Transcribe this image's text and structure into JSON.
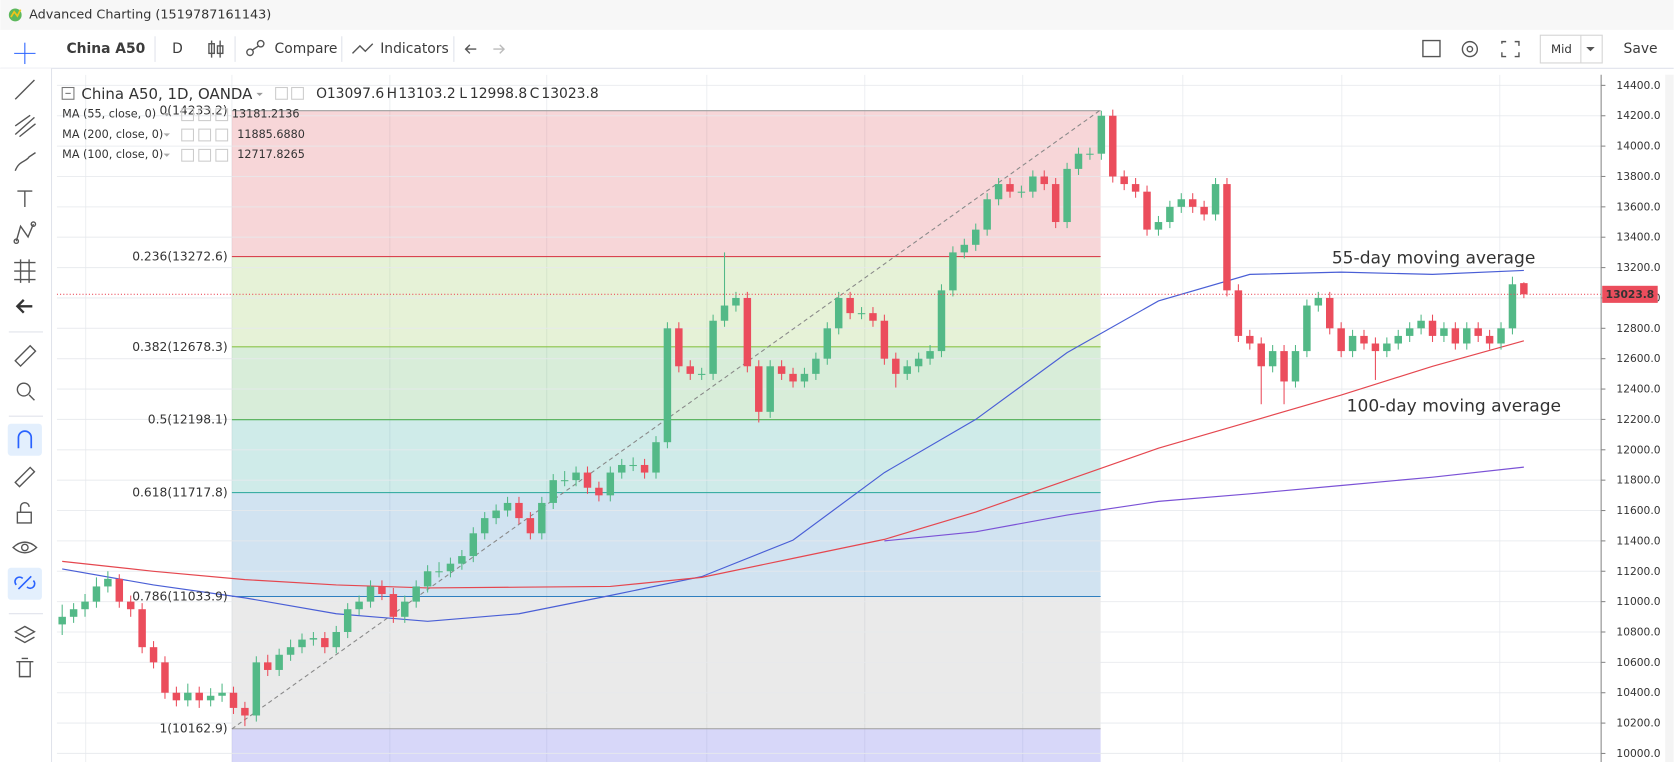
{
  "window": {
    "title": "Advanced Charting (1519787161143)"
  },
  "toolbar": {
    "symbol": "China A50",
    "interval": "D",
    "compare": "Compare",
    "indicators": "Indicators",
    "price_type": "Mid",
    "save": "Save"
  },
  "chart_data": {
    "type": "candlestick",
    "title": "China A50, 1D, OANDA",
    "ohlc_labels": [
      "O",
      "H",
      "L",
      "C"
    ],
    "up_color": "#53b987",
    "down_color": "#eb4d5c",
    "candles": [
      [
        10850,
        10980,
        10780,
        10900
      ],
      [
        10900,
        10990,
        10860,
        10950
      ],
      [
        10950,
        11050,
        10900,
        11000
      ],
      [
        11000,
        11160,
        10960,
        11100
      ],
      [
        11100,
        11200,
        11060,
        11150
      ],
      [
        11150,
        11180,
        10960,
        11000
      ],
      [
        11000,
        11040,
        10900,
        10950
      ],
      [
        10950,
        10990,
        10660,
        10700
      ],
      [
        10700,
        10740,
        10560,
        10600
      ],
      [
        10600,
        10640,
        10360,
        10400
      ],
      [
        10400,
        10440,
        10310,
        10350
      ],
      [
        10350,
        10460,
        10310,
        10400
      ],
      [
        10400,
        10440,
        10300,
        10350
      ],
      [
        10350,
        10430,
        10310,
        10380
      ],
      [
        10380,
        10460,
        10340,
        10400
      ],
      [
        10400,
        10440,
        10260,
        10300
      ],
      [
        10300,
        10340,
        10180,
        10250
      ],
      [
        10250,
        10640,
        10210,
        10600
      ],
      [
        10600,
        10650,
        10510,
        10550
      ],
      [
        10550,
        10690,
        10510,
        10650
      ],
      [
        10650,
        10750,
        10610,
        10700
      ],
      [
        10700,
        10790,
        10660,
        10750
      ],
      [
        10750,
        10800,
        10710,
        10760
      ],
      [
        10760,
        10800,
        10660,
        10700
      ],
      [
        10700,
        10840,
        10660,
        10800
      ],
      [
        10800,
        10990,
        10760,
        10950
      ],
      [
        10950,
        11040,
        10910,
        11000
      ],
      [
        11000,
        11140,
        10960,
        11100
      ],
      [
        11100,
        11140,
        11010,
        11050
      ],
      [
        11050,
        11090,
        10860,
        10900
      ],
      [
        10900,
        11040,
        10860,
        11000
      ],
      [
        11000,
        11140,
        10960,
        11100
      ],
      [
        11100,
        11240,
        11060,
        11200
      ],
      [
        11200,
        11260,
        11160,
        11200
      ],
      [
        11200,
        11290,
        11160,
        11250
      ],
      [
        11250,
        11340,
        11210,
        11300
      ],
      [
        11300,
        11490,
        11260,
        11450
      ],
      [
        11450,
        11590,
        11410,
        11550
      ],
      [
        11550,
        11640,
        11510,
        11600
      ],
      [
        11600,
        11690,
        11560,
        11650
      ],
      [
        11650,
        11690,
        11510,
        11550
      ],
      [
        11550,
        11590,
        11410,
        11450
      ],
      [
        11450,
        11690,
        11410,
        11650
      ],
      [
        11650,
        11840,
        11610,
        11800
      ],
      [
        11800,
        11860,
        11760,
        11800
      ],
      [
        11800,
        11890,
        11760,
        11850
      ],
      [
        11850,
        11890,
        11710,
        11750
      ],
      [
        11750,
        11790,
        11660,
        11700
      ],
      [
        11700,
        11890,
        11660,
        11850
      ],
      [
        11850,
        11940,
        11810,
        11900
      ],
      [
        11900,
        11950,
        11860,
        11900
      ],
      [
        11900,
        11940,
        11810,
        11850
      ],
      [
        11850,
        12090,
        11810,
        12050
      ],
      [
        12050,
        12840,
        12010,
        12800
      ],
      [
        12800,
        12840,
        12510,
        12550
      ],
      [
        12550,
        12590,
        12460,
        12500
      ],
      [
        12500,
        12540,
        12460,
        12500
      ],
      [
        12500,
        12890,
        12460,
        12850
      ],
      [
        12850,
        13300,
        12810,
        12950
      ],
      [
        12950,
        13040,
        12910,
        13000
      ],
      [
        13000,
        13040,
        12510,
        12550
      ],
      [
        12550,
        12590,
        12180,
        12250
      ],
      [
        12250,
        12590,
        12210,
        12550
      ],
      [
        12550,
        12590,
        12460,
        12500
      ],
      [
        12500,
        12540,
        12410,
        12450
      ],
      [
        12450,
        12540,
        12410,
        12500
      ],
      [
        12500,
        12640,
        12460,
        12600
      ],
      [
        12600,
        12840,
        12560,
        12800
      ],
      [
        12800,
        13040,
        12760,
        13000
      ],
      [
        13000,
        13040,
        12860,
        12900
      ],
      [
        12900,
        12940,
        12860,
        12900
      ],
      [
        12900,
        12940,
        12810,
        12850
      ],
      [
        12850,
        12890,
        12560,
        12600
      ],
      [
        12600,
        12640,
        12410,
        12500
      ],
      [
        12500,
        12590,
        12460,
        12550
      ],
      [
        12550,
        12640,
        12510,
        12600
      ],
      [
        12600,
        12690,
        12560,
        12650
      ],
      [
        12650,
        13090,
        12610,
        13050
      ],
      [
        13050,
        13340,
        13010,
        13300
      ],
      [
        13300,
        13390,
        13260,
        13350
      ],
      [
        13350,
        13490,
        13310,
        13450
      ],
      [
        13450,
        13690,
        13410,
        13650
      ],
      [
        13650,
        13790,
        13610,
        13750
      ],
      [
        13750,
        13790,
        13660,
        13700
      ],
      [
        13700,
        13740,
        13660,
        13700
      ],
      [
        13700,
        13840,
        13660,
        13800
      ],
      [
        13800,
        13840,
        13710,
        13750
      ],
      [
        13750,
        13790,
        13460,
        13500
      ],
      [
        13500,
        13890,
        13460,
        13850
      ],
      [
        13850,
        13990,
        13810,
        13950
      ],
      [
        13950,
        13990,
        13910,
        13950
      ],
      [
        13950,
        14233.2,
        13910,
        14200
      ],
      [
        14200,
        14240,
        13760,
        13800
      ],
      [
        13800,
        13840,
        13710,
        13750
      ],
      [
        13750,
        13790,
        13660,
        13700
      ],
      [
        13700,
        13740,
        13410,
        13450
      ],
      [
        13450,
        13540,
        13410,
        13500
      ],
      [
        13500,
        13640,
        13460,
        13600
      ],
      [
        13600,
        13690,
        13560,
        13650
      ],
      [
        13650,
        13690,
        13560,
        13600
      ],
      [
        13600,
        13640,
        13510,
        13550
      ],
      [
        13550,
        13790,
        13510,
        13750
      ],
      [
        13750,
        13790,
        13010,
        13050
      ],
      [
        13050,
        13090,
        12710,
        12750
      ],
      [
        12750,
        12790,
        12660,
        12700
      ],
      [
        12700,
        12740,
        12300,
        12550
      ],
      [
        12550,
        12690,
        12510,
        12650
      ],
      [
        12650,
        12690,
        12300,
        12450
      ],
      [
        12450,
        12690,
        12410,
        12650
      ],
      [
        12650,
        12990,
        12610,
        12950
      ],
      [
        12950,
        13040,
        12910,
        13000
      ],
      [
        13000,
        13040,
        12760,
        12800
      ],
      [
        12800,
        12840,
        12610,
        12650
      ],
      [
        12650,
        12790,
        12610,
        12750
      ],
      [
        12750,
        12790,
        12660,
        12700
      ],
      [
        12700,
        12740,
        12460,
        12650
      ],
      [
        12650,
        12740,
        12610,
        12700
      ],
      [
        12700,
        12790,
        12660,
        12750
      ],
      [
        12750,
        12840,
        12710,
        12800
      ],
      [
        12800,
        12890,
        12760,
        12850
      ],
      [
        12850,
        12890,
        12710,
        12750
      ],
      [
        12750,
        12840,
        12710,
        12800
      ],
      [
        12800,
        12840,
        12660,
        12700
      ],
      [
        12700,
        12840,
        12660,
        12800
      ],
      [
        12800,
        12840,
        12710,
        12750
      ],
      [
        12750,
        12790,
        12660,
        12700
      ],
      [
        12700,
        12840,
        12660,
        12800
      ],
      [
        12800,
        13140,
        12760,
        13090
      ],
      [
        13097.6,
        13103.2,
        12998.8,
        13023.8
      ]
    ],
    "ylim": [
      10000,
      14400
    ],
    "yticks": [
      {
        "value": 10000,
        "label": "10000.0"
      },
      {
        "value": 10200,
        "label": "10200.0"
      },
      {
        "value": 10400,
        "label": "10400.0"
      },
      {
        "value": 10600,
        "label": "10600.0"
      },
      {
        "value": 10800,
        "label": "10800.0"
      },
      {
        "value": 11000,
        "label": "11000.0"
      },
      {
        "value": 11200,
        "label": "11200.0"
      },
      {
        "value": 11400,
        "label": "11400.0"
      },
      {
        "value": 11600,
        "label": "11600.0"
      },
      {
        "value": 11800,
        "label": "11800.0"
      },
      {
        "value": 12000,
        "label": "12000.0"
      },
      {
        "value": 12200,
        "label": "12200.0"
      },
      {
        "value": 12400,
        "label": "12400.0"
      },
      {
        "value": 12600,
        "label": "12600.0"
      },
      {
        "value": 12800,
        "label": "12800.0"
      },
      {
        "value": 13000,
        "label": "13000.0"
      },
      {
        "value": 13200,
        "label": "13200.0"
      },
      {
        "value": 13400,
        "label": "13400.0"
      },
      {
        "value": 13600,
        "label": "13600.0"
      },
      {
        "value": 13800,
        "label": "13800.0"
      },
      {
        "value": 14000,
        "label": "14000.0"
      },
      {
        "value": 14200,
        "label": "14200.0"
      },
      {
        "value": 14400,
        "label": "14400.0"
      }
    ],
    "grid": true,
    "ma_x": [
      0,
      8,
      16,
      24,
      32,
      40,
      48,
      56,
      64,
      72,
      80,
      88,
      96,
      104,
      112,
      120,
      128
    ],
    "series": [
      {
        "name": "MA (55, close, 0)",
        "color": "#4a5fd6",
        "legend_value": "13181.2136",
        "values": [
          11215,
          11110,
          11025,
          10920,
          10870,
          10920,
          11040,
          11165,
          11405,
          11850,
          12200,
          12640,
          12980,
          13155,
          13170,
          13155,
          13181.2136
        ]
      },
      {
        "name": "MA (200, close, 0)",
        "color": "#7b52d6",
        "legend_value": "11885.6880",
        "values": [
          null,
          null,
          null,
          null,
          null,
          null,
          null,
          null,
          null,
          11400,
          11460,
          11570,
          11660,
          11710,
          11765,
          11820,
          11885.688
        ]
      },
      {
        "name": "MA (100, close, 0)",
        "color": "#e5474f",
        "legend_value": "12717.8265",
        "values": [
          11265,
          11200,
          11145,
          11110,
          11090,
          11095,
          11100,
          11160,
          11285,
          11410,
          11590,
          11800,
          12010,
          12185,
          12360,
          12550,
          12717.8265
        ]
      }
    ],
    "fibonacci": [
      {
        "label": "0(14233.2)",
        "value": 14233.2,
        "color": "#9e9e9e"
      },
      {
        "label": "0.236(13272.6)",
        "value": 13272.6,
        "color": "#d9434f"
      },
      {
        "label": "0.382(12678.3)",
        "value": 12678.3,
        "color": "#8bc34a"
      },
      {
        "label": "0.5(12198.1)",
        "value": 12198.1,
        "color": "#4caf50"
      },
      {
        "label": "0.618(11717.8)",
        "value": 11717.8,
        "color": "#26a69a"
      },
      {
        "label": "0.786(11033.9)",
        "value": 11033.9,
        "color": "#2f7fbf"
      },
      {
        "label": "1(10162.9)",
        "value": 10162.9,
        "color": "#9e9e9e"
      }
    ],
    "annotations": [
      {
        "text": "55-day moving average",
        "color": "#3a4bbf"
      },
      {
        "text": "100-day moving average",
        "color": "#d9333f"
      }
    ]
  }
}
